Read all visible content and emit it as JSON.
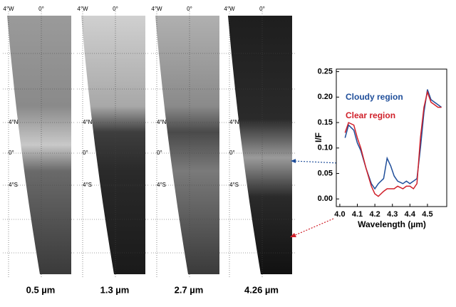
{
  "chart_data": {
    "type": "line",
    "x_label": "Wavelength (µm)",
    "y_label": "I/F",
    "x": [
      4.03,
      4.05,
      4.08,
      4.1,
      4.12,
      4.15,
      4.18,
      4.2,
      4.22,
      4.25,
      4.27,
      4.29,
      4.31,
      4.33,
      4.36,
      4.38,
      4.4,
      4.42,
      4.44,
      4.46,
      4.48,
      4.5,
      4.52,
      4.54,
      4.56,
      4.58
    ],
    "series": [
      {
        "name": "Cloudy region",
        "color": "#1f4e9a",
        "values": [
          0.12,
          0.145,
          0.135,
          0.11,
          0.095,
          0.06,
          0.03,
          0.02,
          0.03,
          0.04,
          0.08,
          0.065,
          0.045,
          0.035,
          0.03,
          0.035,
          0.03,
          0.035,
          0.04,
          0.1,
          0.17,
          0.215,
          0.195,
          0.19,
          0.185,
          0.18
        ]
      },
      {
        "name": "Clear region",
        "color": "#d0202a",
        "values": [
          0.13,
          0.15,
          0.145,
          0.12,
          0.1,
          0.06,
          0.025,
          0.01,
          0.005,
          0.015,
          0.02,
          0.02,
          0.02,
          0.025,
          0.02,
          0.025,
          0.025,
          0.02,
          0.03,
          0.12,
          0.18,
          0.21,
          0.19,
          0.185,
          0.18,
          0.18
        ]
      }
    ],
    "xlim": [
      3.98,
      4.61
    ],
    "ylim": [
      -0.015,
      0.255
    ],
    "xticks": [
      {
        "value": 4.0,
        "label": "4.0"
      },
      4.1,
      4.2,
      4.3,
      4.4,
      4.5
    ],
    "yticks": [
      {
        "value": 0,
        "label": "0.00"
      },
      0.05,
      {
        "value": 0.1,
        "label": "0.10"
      },
      0.15,
      {
        "value": 0.2,
        "label": "0.20"
      },
      0.25
    ],
    "legend": "upper-left"
  },
  "panels": [
    {
      "label": "0.5 µm"
    },
    {
      "label": "1.3 µm"
    },
    {
      "label": "2.7 µm"
    },
    {
      "label": "4.26 µm"
    }
  ],
  "map_labels": {
    "lon": [
      "4°W",
      "0°"
    ],
    "lat": [
      "4°N",
      "0°",
      "4°S"
    ]
  }
}
